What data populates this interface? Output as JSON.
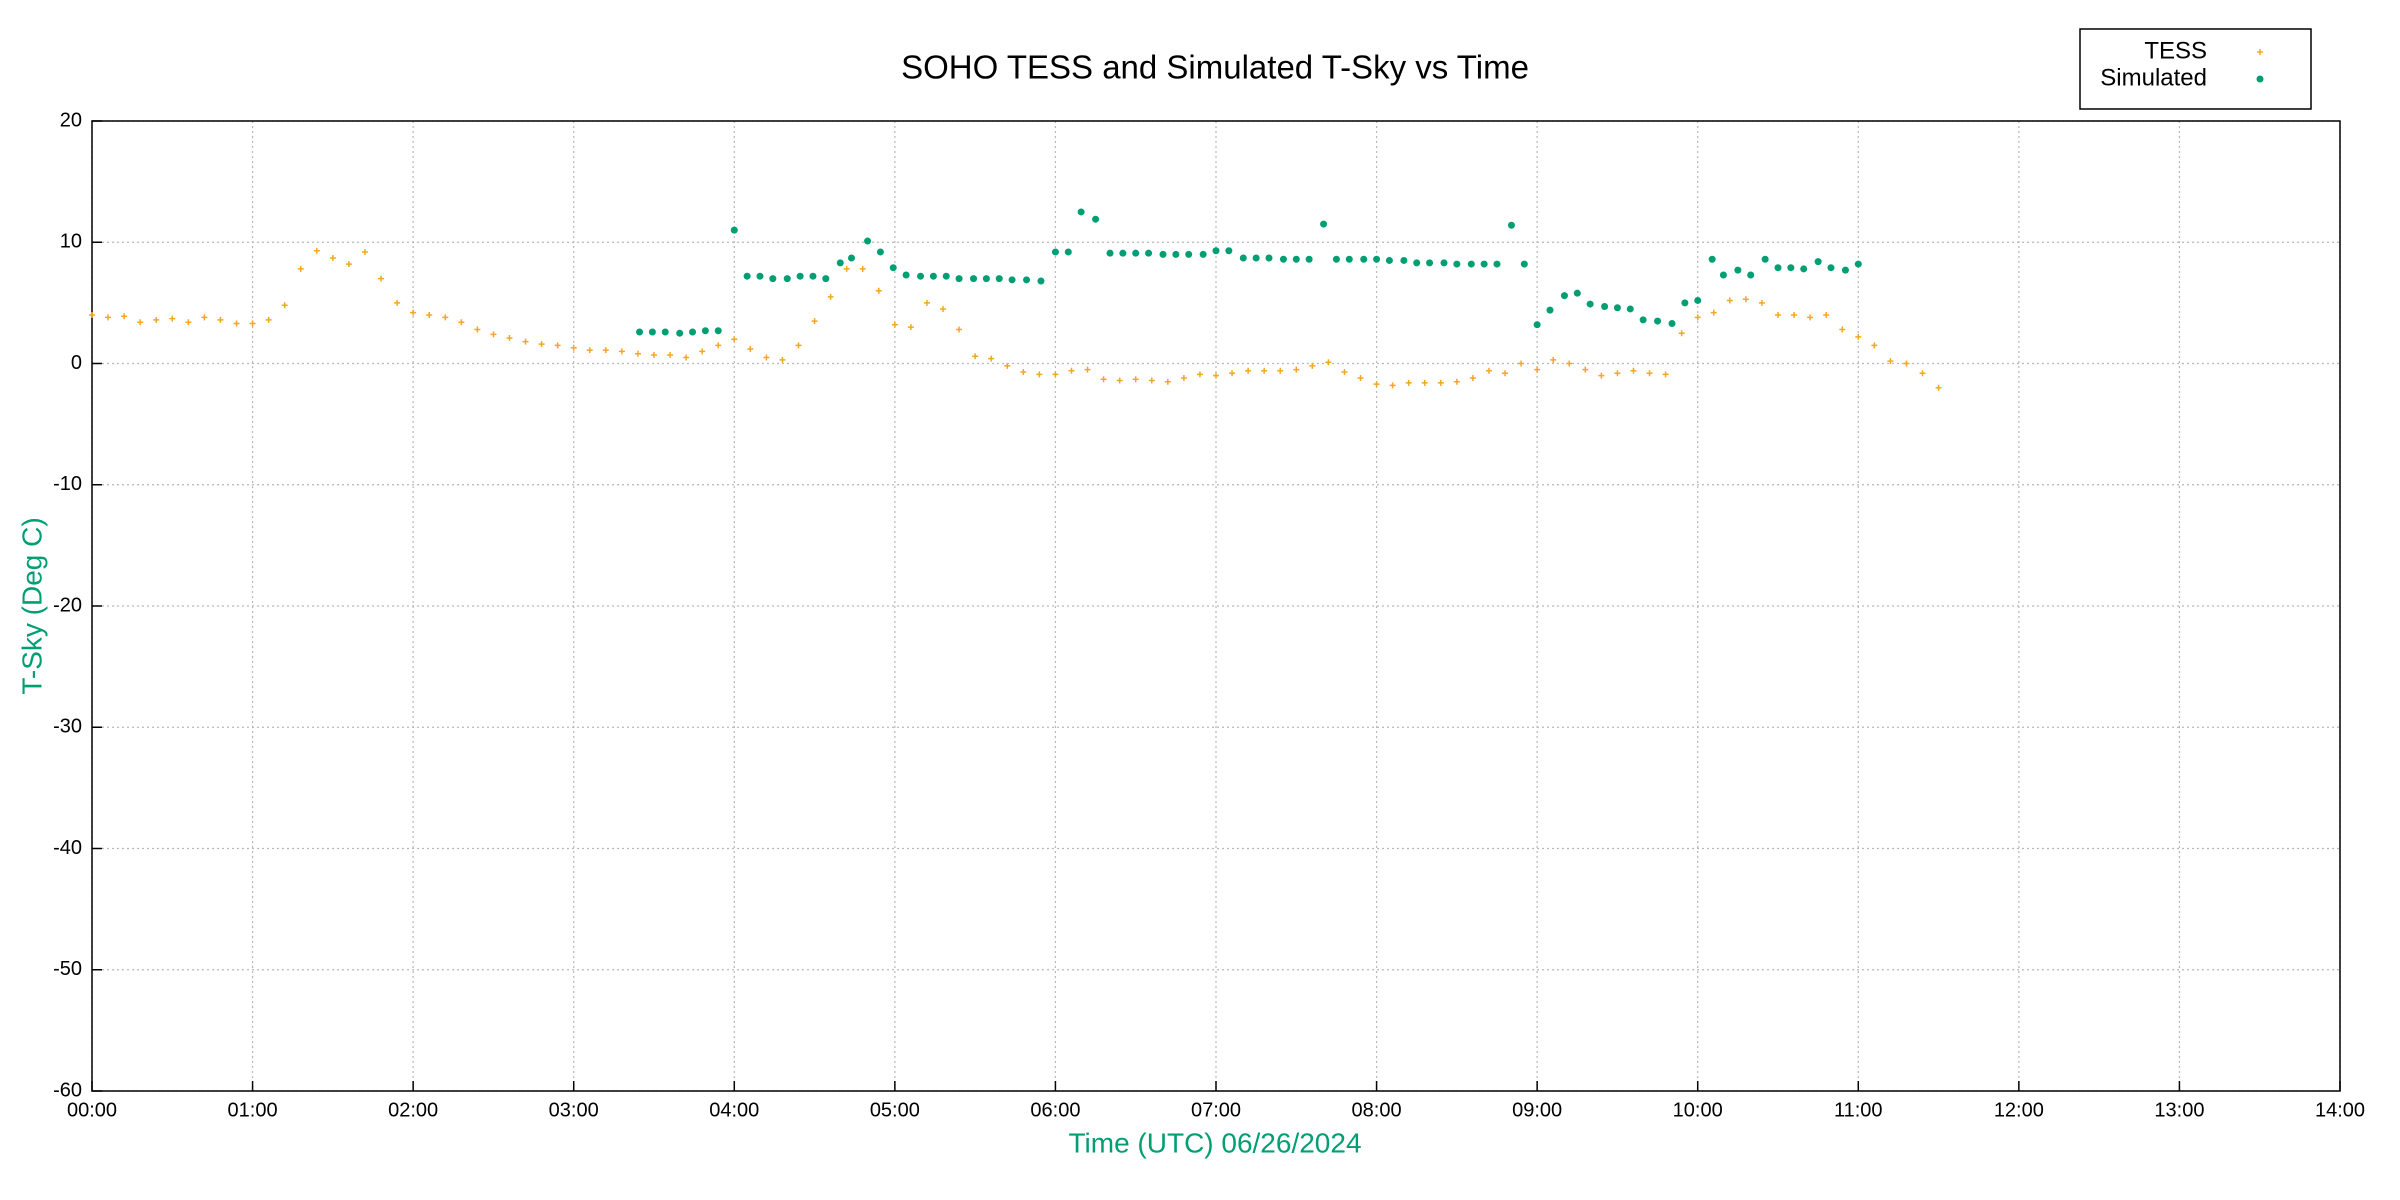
{
  "chart_data": {
    "type": "scatter",
    "title": "SOHO TESS and Simulated T-Sky vs Time",
    "x_label": "Time (UTC)   06/26/2024",
    "y_label": "T-Sky (Deg C)",
    "xlim": [
      0,
      14
    ],
    "xticks": [
      {
        "value": 0,
        "label": "00:00"
      },
      {
        "value": 1,
        "label": "01:00"
      },
      {
        "value": 2,
        "label": "02:00"
      },
      {
        "value": 3,
        "label": "03:00"
      },
      {
        "value": 4,
        "label": "04:00"
      },
      {
        "value": 5,
        "label": "05:00"
      },
      {
        "value": 6,
        "label": "06:00"
      },
      {
        "value": 7,
        "label": "07:00"
      },
      {
        "value": 8,
        "label": "08:00"
      },
      {
        "value": 9,
        "label": "09:00"
      },
      {
        "value": 10,
        "label": "10:00"
      },
      {
        "value": 11,
        "label": "11:00"
      },
      {
        "value": 12,
        "label": "12:00"
      },
      {
        "value": 13,
        "label": "13:00"
      },
      {
        "value": 14,
        "label": "14:00"
      }
    ],
    "ylim": [
      -60,
      20
    ],
    "yticks": [
      -60,
      -50,
      -40,
      -30,
      -20,
      -10,
      0,
      10,
      20
    ],
    "grid": true,
    "legend": "top-right",
    "series": [
      {
        "name": "TESS",
        "color": "#f5a623",
        "marker": "plus",
        "x": [
          0.0,
          0.1,
          0.2,
          0.3,
          0.4,
          0.5,
          0.6,
          0.7,
          0.8,
          0.9,
          1.0,
          1.1,
          1.2,
          1.3,
          1.4,
          1.5,
          1.6,
          1.7,
          1.8,
          1.9,
          2.0,
          2.1,
          2.2,
          2.3,
          2.4,
          2.5,
          2.6,
          2.7,
          2.8,
          2.9,
          3.0,
          3.1,
          3.2,
          3.3,
          3.4,
          3.5,
          3.6,
          3.7,
          3.8,
          3.9,
          4.0,
          4.1,
          4.2,
          4.3,
          4.4,
          4.5,
          4.6,
          4.7,
          4.8,
          4.9,
          5.0,
          5.1,
          5.2,
          5.3,
          5.4,
          5.5,
          5.6,
          5.7,
          5.8,
          5.9,
          6.0,
          6.1,
          6.2,
          6.3,
          6.4,
          6.5,
          6.6,
          6.7,
          6.8,
          6.9,
          7.0,
          7.1,
          7.2,
          7.3,
          7.4,
          7.5,
          7.6,
          7.7,
          7.8,
          7.9,
          8.0,
          8.1,
          8.2,
          8.3,
          8.4,
          8.5,
          8.6,
          8.7,
          8.8,
          8.9,
          9.0,
          9.1,
          9.2,
          9.3,
          9.4,
          9.5,
          9.6,
          9.7,
          9.8,
          9.9,
          10.0,
          10.1,
          10.2,
          10.3,
          10.4,
          10.5,
          10.6,
          10.7,
          10.8,
          10.9,
          11.0,
          11.1,
          11.2,
          11.3,
          11.4,
          11.5
        ],
        "values": [
          4.0,
          3.8,
          3.9,
          3.4,
          3.6,
          3.7,
          3.4,
          3.8,
          3.6,
          3.3,
          3.3,
          3.6,
          4.8,
          7.8,
          9.3,
          8.7,
          8.2,
          9.2,
          7.0,
          5.0,
          4.2,
          4.0,
          3.8,
          3.4,
          2.8,
          2.4,
          2.1,
          1.8,
          1.6,
          1.5,
          1.3,
          1.1,
          1.1,
          1.0,
          0.8,
          0.7,
          0.7,
          0.5,
          1.0,
          1.5,
          2.0,
          1.2,
          0.5,
          0.3,
          1.5,
          3.5,
          5.5,
          7.8,
          7.8,
          6.0,
          3.2,
          3.0,
          5.0,
          4.5,
          2.8,
          0.6,
          0.4,
          -0.2,
          -0.7,
          -0.9,
          -0.9,
          -0.6,
          -0.5,
          -1.3,
          -1.4,
          -1.3,
          -1.4,
          -1.5,
          -1.2,
          -0.9,
          -1.0,
          -0.8,
          -0.6,
          -0.6,
          -0.6,
          -0.5,
          -0.2,
          0.1,
          -0.7,
          -1.2,
          -1.7,
          -1.8,
          -1.6,
          -1.6,
          -1.6,
          -1.5,
          -1.2,
          -0.6,
          -0.8,
          0.0,
          -0.5,
          0.3,
          0.0,
          -0.5,
          -1.0,
          -0.8,
          -0.6,
          -0.8,
          -0.9,
          2.5,
          3.8,
          4.2,
          5.2,
          5.3,
          5.0,
          4.0,
          4.0,
          3.8,
          4.0,
          2.8,
          2.2,
          1.5,
          0.2,
          0.0,
          -0.8,
          -2.0
        ]
      },
      {
        "name": "Simulated",
        "color": "#009e73",
        "marker": "dot",
        "x": [
          3.41,
          3.49,
          3.57,
          3.66,
          3.74,
          3.82,
          3.9,
          4.0,
          4.08,
          4.16,
          4.24,
          4.33,
          4.41,
          4.49,
          4.57,
          4.66,
          4.73,
          4.83,
          4.91,
          4.99,
          5.07,
          5.16,
          5.24,
          5.32,
          5.4,
          5.49,
          5.57,
          5.65,
          5.73,
          5.82,
          5.91,
          6.0,
          6.08,
          6.16,
          6.25,
          6.34,
          6.42,
          6.5,
          6.58,
          6.67,
          6.75,
          6.83,
          6.92,
          7.0,
          7.08,
          7.17,
          7.25,
          7.33,
          7.42,
          7.5,
          7.58,
          7.67,
          7.75,
          7.83,
          7.92,
          8.0,
          8.08,
          8.17,
          8.25,
          8.33,
          8.42,
          8.5,
          8.59,
          8.67,
          8.75,
          8.84,
          8.92,
          9.0,
          9.08,
          9.17,
          9.25,
          9.33,
          9.42,
          9.5,
          9.58,
          9.66,
          9.75,
          9.84,
          9.92,
          10.0,
          10.09,
          10.16,
          10.25,
          10.33,
          10.42,
          10.5,
          10.58,
          10.66,
          10.75,
          10.83,
          10.92,
          11.0
        ],
        "values": [
          2.6,
          2.6,
          2.6,
          2.5,
          2.6,
          2.7,
          2.7,
          11.0,
          7.2,
          7.2,
          7.0,
          7.0,
          7.2,
          7.2,
          7.0,
          8.3,
          8.7,
          10.1,
          9.2,
          7.9,
          7.3,
          7.2,
          7.2,
          7.2,
          7.0,
          7.0,
          7.0,
          7.0,
          6.9,
          6.9,
          6.8,
          9.2,
          9.2,
          12.5,
          11.9,
          9.1,
          9.1,
          9.1,
          9.1,
          9.0,
          9.0,
          9.0,
          9.0,
          9.3,
          9.3,
          8.7,
          8.7,
          8.7,
          8.6,
          8.6,
          8.6,
          11.5,
          8.6,
          8.6,
          8.6,
          8.6,
          8.5,
          8.5,
          8.3,
          8.3,
          8.3,
          8.2,
          8.2,
          8.2,
          8.2,
          11.4,
          8.2,
          3.2,
          4.4,
          5.6,
          5.8,
          4.9,
          4.7,
          4.6,
          4.5,
          3.6,
          3.5,
          3.3,
          5.0,
          5.2,
          8.6,
          7.3,
          7.7,
          7.3,
          8.6,
          7.9,
          7.9,
          7.8,
          8.4,
          7.9,
          7.7,
          8.2
        ]
      }
    ]
  }
}
